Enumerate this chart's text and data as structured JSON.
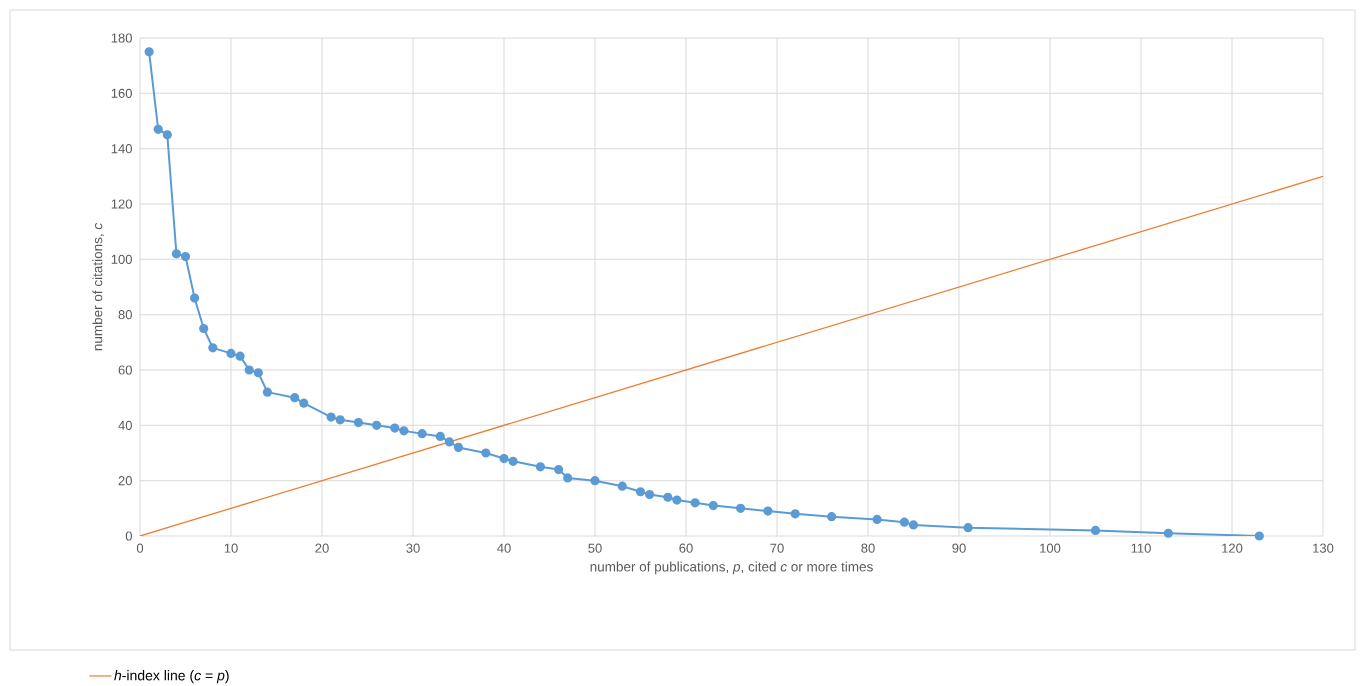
{
  "chart_data": {
    "type": "line",
    "xlabel": "number of publications, *p*, cited *c* or more times",
    "ylabel": "number of citations, *c*",
    "xlim": [
      0,
      130
    ],
    "ylim": [
      0,
      180
    ],
    "xticks": [
      0,
      10,
      20,
      30,
      40,
      50,
      60,
      70,
      80,
      90,
      100,
      110,
      120,
      130
    ],
    "yticks": [
      0,
      20,
      40,
      60,
      80,
      100,
      120,
      140,
      160,
      180
    ],
    "grid": true,
    "legend": "bottom",
    "series": [
      {
        "color": "#5b9bd5",
        "marker": "circle",
        "x": [
          1,
          2,
          3,
          4,
          5,
          6,
          7,
          8,
          10,
          11,
          12,
          13,
          14,
          17,
          18,
          21,
          22,
          24,
          26,
          28,
          29,
          31,
          33,
          34,
          35,
          38,
          40,
          41,
          44,
          46,
          47,
          50,
          53,
          55,
          56,
          58,
          59,
          61,
          63,
          66,
          69,
          72,
          76,
          81,
          84,
          85,
          91,
          105,
          113,
          123
        ],
        "values": [
          175,
          147,
          145,
          102,
          101,
          86,
          75,
          68,
          66,
          65,
          60,
          59,
          52,
          50,
          48,
          43,
          42,
          41,
          40,
          39,
          38,
          37,
          36,
          34,
          32,
          30,
          28,
          27,
          25,
          24,
          21,
          20,
          18,
          16,
          15,
          14,
          13,
          12,
          11,
          10,
          9,
          8,
          7,
          6,
          5,
          4,
          3,
          2,
          1,
          0
        ]
      },
      {
        "name": "*h*-index line (*c* = *p*)",
        "color": "#ed7d31",
        "marker": "none",
        "x": [
          0,
          130
        ],
        "values": [
          0,
          130
        ]
      }
    ]
  }
}
